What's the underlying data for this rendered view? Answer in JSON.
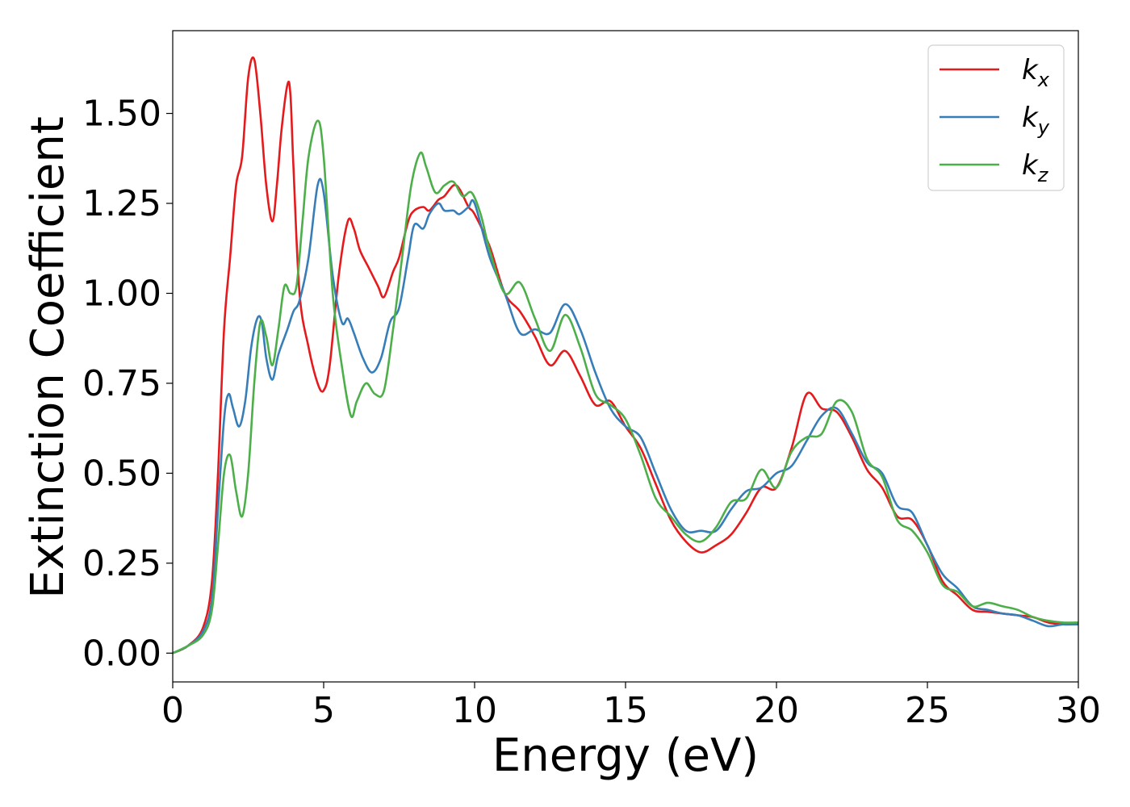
{
  "chart_data": {
    "type": "line",
    "xlabel": "Energy (eV)",
    "ylabel": "Extinction Coefficient",
    "xlim": [
      0,
      30
    ],
    "ylim": [
      -0.08,
      1.73
    ],
    "xticks": [
      0,
      5,
      10,
      15,
      20,
      25,
      30
    ],
    "xtick_labels": [
      "0",
      "5",
      "10",
      "15",
      "20",
      "25",
      "30"
    ],
    "yticks": [
      0.0,
      0.25,
      0.5,
      0.75,
      1.0,
      1.25,
      1.5
    ],
    "ytick_labels": [
      "0.00",
      "0.25",
      "0.50",
      "0.75",
      "1.00",
      "1.25",
      "1.50"
    ],
    "grid": false,
    "legend_position": "top-right",
    "series": [
      {
        "name": "k_x",
        "label_main": "k",
        "label_sub": "x",
        "color": "#e41a1c",
        "x": [
          0,
          0.5,
          1.0,
          1.3,
          1.5,
          1.7,
          1.9,
          2.1,
          2.3,
          2.5,
          2.7,
          2.9,
          3.1,
          3.3,
          3.45,
          3.6,
          3.8,
          3.9,
          4.0,
          4.2,
          4.5,
          4.8,
          5.0,
          5.2,
          5.5,
          5.8,
          6.0,
          6.2,
          6.5,
          6.8,
          7.0,
          7.3,
          7.5,
          7.8,
          8.0,
          8.3,
          8.5,
          8.8,
          9.0,
          9.3,
          9.5,
          9.8,
          10.0,
          10.5,
          11.0,
          11.5,
          12.0,
          12.5,
          13.0,
          13.5,
          14.0,
          14.5,
          15.0,
          15.5,
          16.0,
          16.5,
          17.0,
          17.5,
          18.0,
          18.5,
          19.0,
          19.5,
          20.0,
          20.5,
          21.0,
          21.5,
          22.0,
          22.5,
          23.0,
          23.5,
          24.0,
          24.5,
          25.0,
          25.5,
          26.0,
          26.5,
          27.0,
          27.5,
          28.0,
          28.5,
          29.0,
          29.5,
          30.0
        ],
        "values": [
          0.0,
          0.02,
          0.07,
          0.2,
          0.5,
          0.9,
          1.1,
          1.3,
          1.38,
          1.6,
          1.65,
          1.5,
          1.3,
          1.2,
          1.3,
          1.45,
          1.58,
          1.55,
          1.35,
          1.0,
          0.85,
          0.75,
          0.73,
          0.8,
          1.05,
          1.2,
          1.18,
          1.12,
          1.07,
          1.02,
          0.99,
          1.06,
          1.1,
          1.2,
          1.23,
          1.24,
          1.23,
          1.26,
          1.27,
          1.3,
          1.29,
          1.24,
          1.22,
          1.13,
          1.0,
          0.95,
          0.88,
          0.8,
          0.84,
          0.77,
          0.69,
          0.7,
          0.63,
          0.57,
          0.47,
          0.37,
          0.31,
          0.28,
          0.3,
          0.33,
          0.39,
          0.46,
          0.46,
          0.57,
          0.72,
          0.68,
          0.67,
          0.6,
          0.51,
          0.46,
          0.38,
          0.37,
          0.3,
          0.2,
          0.16,
          0.12,
          0.115,
          0.11,
          0.105,
          0.1,
          0.085,
          0.08,
          0.08
        ]
      },
      {
        "name": "k_y",
        "label_main": "k",
        "label_sub": "y",
        "color": "#377eb8",
        "x": [
          0,
          0.5,
          1.0,
          1.3,
          1.5,
          1.7,
          1.85,
          2.0,
          2.2,
          2.4,
          2.6,
          2.8,
          2.95,
          3.1,
          3.3,
          3.5,
          3.8,
          4.0,
          4.2,
          4.5,
          4.8,
          5.0,
          5.3,
          5.6,
          5.8,
          6.0,
          6.3,
          6.6,
          6.9,
          7.2,
          7.5,
          7.8,
          8.0,
          8.3,
          8.5,
          8.8,
          9.0,
          9.3,
          9.5,
          9.8,
          10.0,
          10.5,
          11.0,
          11.5,
          12.0,
          12.5,
          13.0,
          13.5,
          14.0,
          14.5,
          15.0,
          15.5,
          16.0,
          16.5,
          17.0,
          17.5,
          18.0,
          18.5,
          19.0,
          19.5,
          20.0,
          20.5,
          21.0,
          21.5,
          22.0,
          22.5,
          23.0,
          23.5,
          24.0,
          24.5,
          25.0,
          25.5,
          26.0,
          26.5,
          27.0,
          27.5,
          28.0,
          28.5,
          29.0,
          29.5,
          30.0
        ],
        "values": [
          0.0,
          0.02,
          0.06,
          0.15,
          0.4,
          0.65,
          0.72,
          0.68,
          0.63,
          0.7,
          0.85,
          0.93,
          0.92,
          0.82,
          0.76,
          0.83,
          0.9,
          0.95,
          0.98,
          1.1,
          1.3,
          1.28,
          1.05,
          0.92,
          0.93,
          0.89,
          0.82,
          0.78,
          0.82,
          0.92,
          0.96,
          1.1,
          1.19,
          1.18,
          1.22,
          1.25,
          1.23,
          1.23,
          1.22,
          1.24,
          1.25,
          1.1,
          1.0,
          0.89,
          0.9,
          0.89,
          0.97,
          0.9,
          0.78,
          0.68,
          0.63,
          0.6,
          0.5,
          0.4,
          0.34,
          0.34,
          0.34,
          0.4,
          0.45,
          0.46,
          0.5,
          0.52,
          0.59,
          0.66,
          0.68,
          0.61,
          0.53,
          0.5,
          0.41,
          0.39,
          0.3,
          0.22,
          0.18,
          0.13,
          0.12,
          0.11,
          0.105,
          0.09,
          0.075,
          0.08,
          0.08
        ]
      },
      {
        "name": "k_z",
        "label_main": "k",
        "label_sub": "z",
        "color": "#4daf4a",
        "x": [
          0,
          0.5,
          1.0,
          1.3,
          1.5,
          1.7,
          1.9,
          2.1,
          2.3,
          2.5,
          2.7,
          2.9,
          3.1,
          3.3,
          3.5,
          3.7,
          3.9,
          4.1,
          4.3,
          4.5,
          4.8,
          5.0,
          5.3,
          5.6,
          5.9,
          6.1,
          6.4,
          6.7,
          7.0,
          7.3,
          7.6,
          7.9,
          8.2,
          8.4,
          8.7,
          9.0,
          9.3,
          9.6,
          9.9,
          10.2,
          10.5,
          11.0,
          11.5,
          12.0,
          12.5,
          13.0,
          13.5,
          14.0,
          14.5,
          15.0,
          15.5,
          16.0,
          16.5,
          17.0,
          17.5,
          18.0,
          18.5,
          19.0,
          19.5,
          20.0,
          20.5,
          21.0,
          21.5,
          22.0,
          22.5,
          23.0,
          23.5,
          24.0,
          24.5,
          25.0,
          25.5,
          26.0,
          26.5,
          27.0,
          27.5,
          28.0,
          28.5,
          29.0,
          29.5,
          30.0
        ],
        "values": [
          0.0,
          0.02,
          0.05,
          0.12,
          0.3,
          0.5,
          0.55,
          0.45,
          0.38,
          0.5,
          0.75,
          0.92,
          0.88,
          0.8,
          0.9,
          1.02,
          1.0,
          1.02,
          1.2,
          1.38,
          1.48,
          1.38,
          1.0,
          0.8,
          0.66,
          0.7,
          0.75,
          0.72,
          0.73,
          0.9,
          1.1,
          1.3,
          1.39,
          1.35,
          1.28,
          1.3,
          1.31,
          1.27,
          1.28,
          1.22,
          1.12,
          1.0,
          1.03,
          0.93,
          0.84,
          0.94,
          0.85,
          0.72,
          0.69,
          0.65,
          0.55,
          0.43,
          0.38,
          0.33,
          0.31,
          0.35,
          0.42,
          0.43,
          0.51,
          0.46,
          0.56,
          0.6,
          0.61,
          0.7,
          0.67,
          0.54,
          0.49,
          0.37,
          0.34,
          0.28,
          0.19,
          0.17,
          0.13,
          0.14,
          0.13,
          0.12,
          0.1,
          0.09,
          0.085,
          0.085
        ]
      }
    ]
  }
}
